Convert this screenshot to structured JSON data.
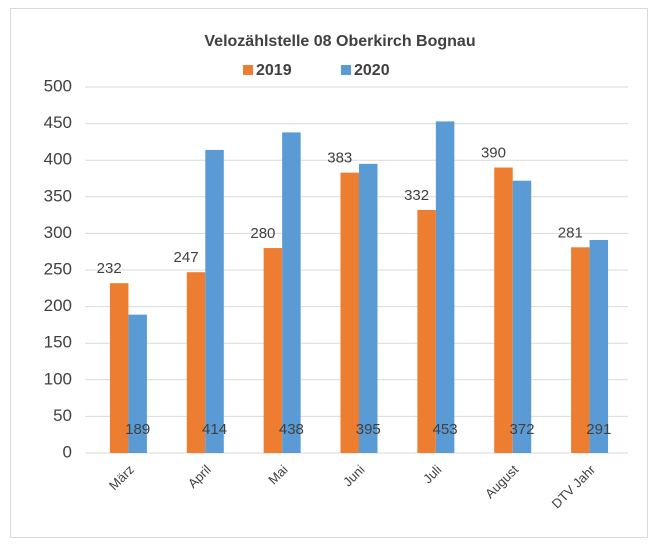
{
  "chart_data": {
    "type": "bar",
    "title": "Velozählstelle 08 Oberkirch Bognau",
    "categories": [
      "März",
      "April",
      "Mai",
      "Juni",
      "Juli",
      "August",
      "DTV Jahr"
    ],
    "series": [
      {
        "name": "2019",
        "color": "#ED7D31",
        "values": [
          232,
          247,
          280,
          383,
          332,
          390,
          281
        ]
      },
      {
        "name": "2020",
        "color": "#5B9BD5",
        "values": [
          189,
          414,
          438,
          395,
          453,
          372,
          291
        ]
      }
    ],
    "ylim": [
      0,
      500
    ],
    "yticks": [
      0,
      50,
      100,
      150,
      200,
      250,
      300,
      350,
      400,
      450,
      500
    ],
    "grid": true,
    "legend": "top"
  }
}
